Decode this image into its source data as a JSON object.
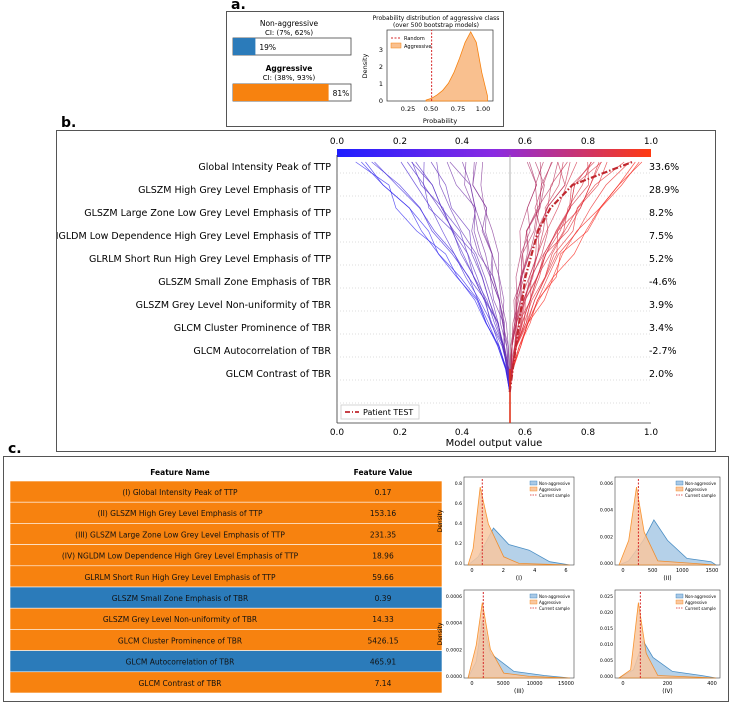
{
  "panel_a": {
    "label": "a.",
    "bars": [
      {
        "name": "Non-aggressive",
        "ci": "CI: (7%, 62%)",
        "value_label": "19%",
        "value": 0.19,
        "color": "#2b7bba"
      },
      {
        "name": "Aggressive",
        "ci": "CI: (38%, 93%)",
        "value_label": "81%",
        "value": 0.81,
        "color": "#f7820f"
      }
    ],
    "density": {
      "title_line1": "Probability distribution of aggressive class",
      "title_line2": "(over 500 bootstrap models)",
      "ylabel": "Density",
      "xlabel": "Probability",
      "xticks": [
        "0.25",
        "0.50",
        "0.75",
        "1.00"
      ],
      "yticks": [
        "0",
        "1",
        "2",
        "3"
      ],
      "legend": [
        "Random",
        "Aggressive"
      ]
    }
  },
  "panel_b": {
    "label": "b.",
    "top_ticks": [
      "0.0",
      "0.2",
      "0.4",
      "0.6",
      "0.8",
      "1.0"
    ],
    "bottom_ticks": [
      "0.0",
      "0.2",
      "0.4",
      "0.6",
      "0.8",
      "1.0"
    ],
    "xlabel": "Model output value",
    "legend": "Patient TEST",
    "features": [
      "Global Intensity Peak of TTP",
      "GLSZM High Grey Level Emphasis of TTP",
      "GLSZM Large Zone Low Grey Level Emphasis of TTP",
      "NGLDM Low Dependence High Grey Level Emphasis of TTP",
      "GLRLM Short Run High Grey Level Emphasis of TTP",
      "GLSZM Small Zone Emphasis of TBR",
      "GLSZM Grey Level Non-uniformity of TBR",
      "GLCM Cluster Prominence of TBR",
      "GLCM Autocorrelation of TBR",
      "GLCM Contrast of TBR"
    ],
    "percents": [
      "33.6%",
      "28.9%",
      "8.2%",
      "7.5%",
      "5.2%",
      "-4.6%",
      "3.9%",
      "3.4%",
      "-2.7%",
      "2.0%"
    ]
  },
  "panel_c": {
    "label": "c.",
    "table": {
      "header_name": "Feature Name",
      "header_value": "Feature Value",
      "rows": [
        {
          "name": "(I) Global Intensity Peak of TTP",
          "value": "0.17",
          "color": "#f7820f"
        },
        {
          "name": "(II) GLSZM High Grey Level Emphasis of TTP",
          "value": "153.16",
          "color": "#f7820f"
        },
        {
          "name": "(III) GLSZM Large Zone Low Grey Level Emphasis of TTP",
          "value": "231.35",
          "color": "#f7820f"
        },
        {
          "name": "(IV) NGLDM Low Dependence High Grey Level Emphasis of TTP",
          "value": "18.96",
          "color": "#f7820f"
        },
        {
          "name": "GLRLM Short Run High Grey Level Emphasis of TTP",
          "value": "59.66",
          "color": "#f7820f"
        },
        {
          "name": "GLSZM Small Zone Emphasis of TBR",
          "value": "0.39",
          "color": "#2b7bba"
        },
        {
          "name": "GLSZM Grey Level Non-uniformity of TBR",
          "value": "14.33",
          "color": "#f7820f"
        },
        {
          "name": "GLCM Cluster Prominence of TBR",
          "value": "5426.15",
          "color": "#f7820f"
        },
        {
          "name": "GLCM Autocorrelation of TBR",
          "value": "465.91",
          "color": "#2b7bba"
        },
        {
          "name": "GLCM Contrast of TBR",
          "value": "7.14",
          "color": "#f7820f"
        }
      ]
    },
    "density_plots": [
      {
        "caption": "(I)",
        "ylabel": "Density",
        "xticks": [
          "0",
          "2",
          "4",
          "6"
        ],
        "yticks": [
          "0.0",
          "0.2",
          "0.4",
          "0.6",
          "0.8"
        ],
        "legend": [
          "Non-aggressive",
          "Aggressive",
          "Current sample"
        ]
      },
      {
        "caption": "(II)",
        "ylabel": "",
        "xticks": [
          "0",
          "500",
          "1000",
          "1500"
        ],
        "yticks": [
          "0.000",
          "0.002",
          "0.004",
          "0.006"
        ],
        "legend": [
          "Non-aggressive",
          "Aggressive",
          "Current sample"
        ]
      },
      {
        "caption": "(III)",
        "ylabel": "Density",
        "xticks": [
          "0",
          "5000",
          "10000",
          "15000"
        ],
        "yticks": [
          "0.0000",
          "0.0002",
          "0.0004",
          "0.0006"
        ],
        "legend": [
          "Non-aggressive",
          "Aggressive",
          "Current sample"
        ]
      },
      {
        "caption": "(IV)",
        "ylabel": "",
        "xticks": [
          "0",
          "200",
          "400"
        ],
        "yticks": [
          "0.000",
          "0.005",
          "0.010",
          "0.015",
          "0.020",
          "0.025"
        ],
        "legend": [
          "Non-aggressive",
          "Aggressive",
          "Current sample"
        ]
      }
    ]
  },
  "chart_data": [
    {
      "type": "bar",
      "categories": [
        "Non-aggressive",
        "Aggressive"
      ],
      "values": [
        19,
        81
      ],
      "annotations": [
        "CI: (7%, 62%)",
        "CI: (38%, 93%)"
      ]
    },
    {
      "type": "area",
      "title": "Probability distribution of aggressive class (over 500 bootstrap models)",
      "xlabel": "Probability",
      "ylabel": "Density",
      "xlim": [
        0.1,
        1.05
      ],
      "ylim": [
        0,
        4
      ],
      "series": [
        {
          "name": "Aggressive",
          "x": [
            0.45,
            0.5,
            0.55,
            0.6,
            0.65,
            0.7,
            0.75,
            0.8,
            0.85,
            0.9,
            0.95,
            1.0
          ],
          "values": [
            0.05,
            0.15,
            0.35,
            0.6,
            1.0,
            1.6,
            2.4,
            3.3,
            3.9,
            3.3,
            1.6,
            0.3
          ]
        },
        {
          "name": "Random",
          "x": [
            0.5,
            0.5
          ],
          "values": [
            0,
            4
          ]
        }
      ]
    },
    {
      "type": "line",
      "title": "",
      "xlabel": "Model output value",
      "xlim": [
        0,
        1
      ],
      "base_value": 0.55,
      "categories": [
        "GLCM Contrast of TBR",
        "GLCM Autocorrelation of TBR",
        "GLCM Cluster Prominence of TBR",
        "GLSZM Grey Level Non-uniformity of TBR",
        "GLSZM Small Zone Emphasis of TBR",
        "GLRLM Short Run High Grey Level Emphasis of TTP",
        "NGLDM Low Dependence High Grey Level Emphasis of TTP",
        "GLSZM Large Zone Low Grey Level Emphasis of TTP",
        "GLSZM High Grey Level Emphasis of TTP",
        "Global Intensity Peak of TTP"
      ],
      "series": [
        {
          "name": "Patient TEST",
          "values": [
            0.56,
            0.57,
            0.58,
            0.59,
            0.6,
            0.62,
            0.64,
            0.68,
            0.75,
            0.94
          ]
        }
      ]
    }
  ]
}
